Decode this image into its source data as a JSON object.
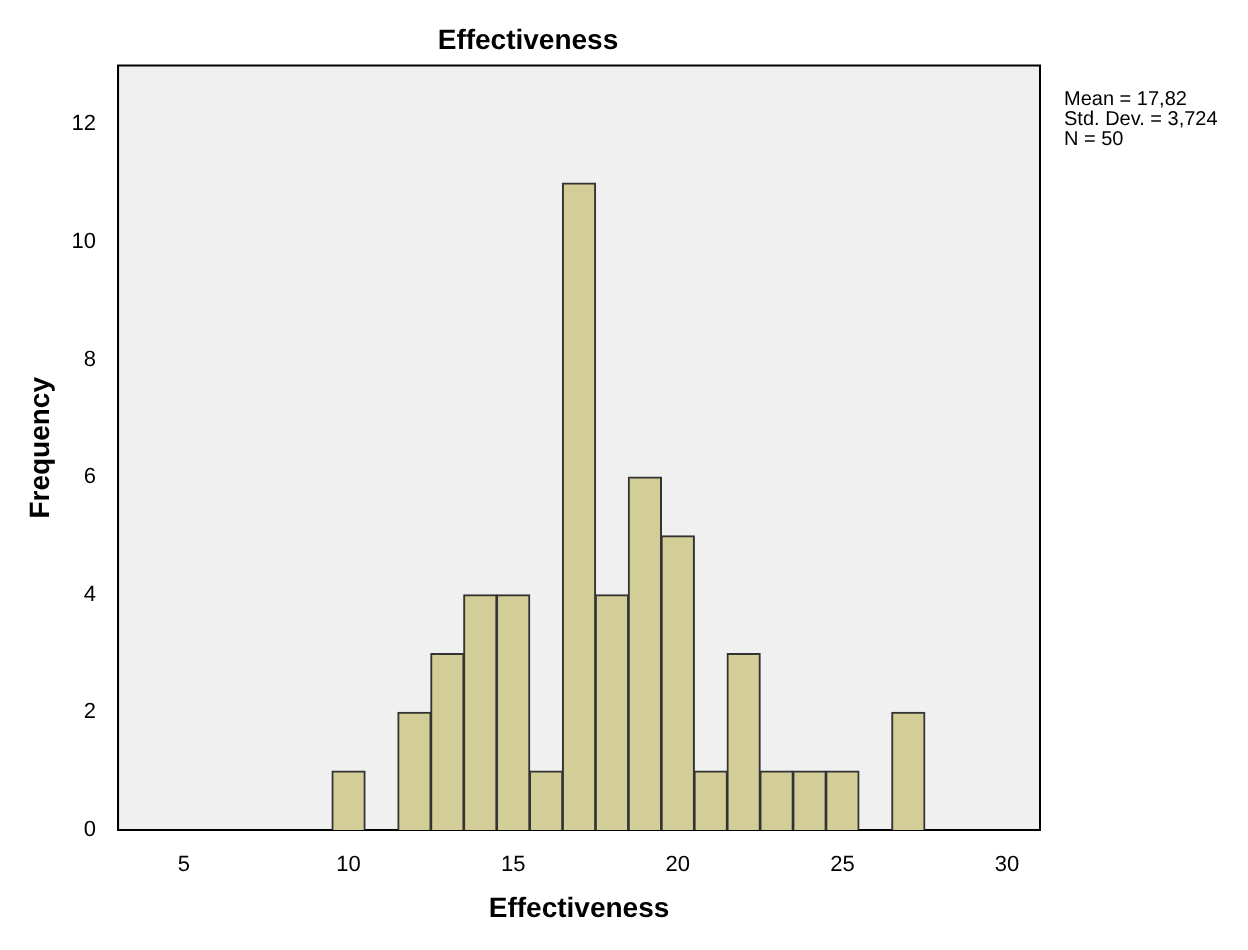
{
  "chart_data": {
    "type": "histogram",
    "title": "Effectiveness",
    "xlabel": "Effectiveness",
    "ylabel": "Frequency",
    "bins": [
      9.5,
      10.5,
      11.5,
      12.5,
      13.5,
      14.5,
      15.5,
      16.5,
      17.5,
      18.5,
      19.5,
      20.5,
      21.5,
      22.5,
      23.5,
      24.5,
      25.5,
      26.5,
      27.5
    ],
    "values": [
      1,
      0,
      2,
      3,
      4,
      4,
      1,
      11,
      4,
      6,
      5,
      1,
      3,
      1,
      1,
      1,
      0,
      2
    ],
    "color": "#d3ce97",
    "xlim": [
      3,
      31
    ],
    "xticks": [
      5,
      10,
      15,
      20,
      25,
      30
    ],
    "ylim": [
      0,
      13
    ],
    "yticks": [
      0,
      2,
      4,
      6,
      8,
      10,
      12
    ],
    "grid": false,
    "legend": false,
    "annotations": [
      "Mean = 17,82",
      "Std. Dev. = 3,724",
      "N = 50"
    ]
  }
}
